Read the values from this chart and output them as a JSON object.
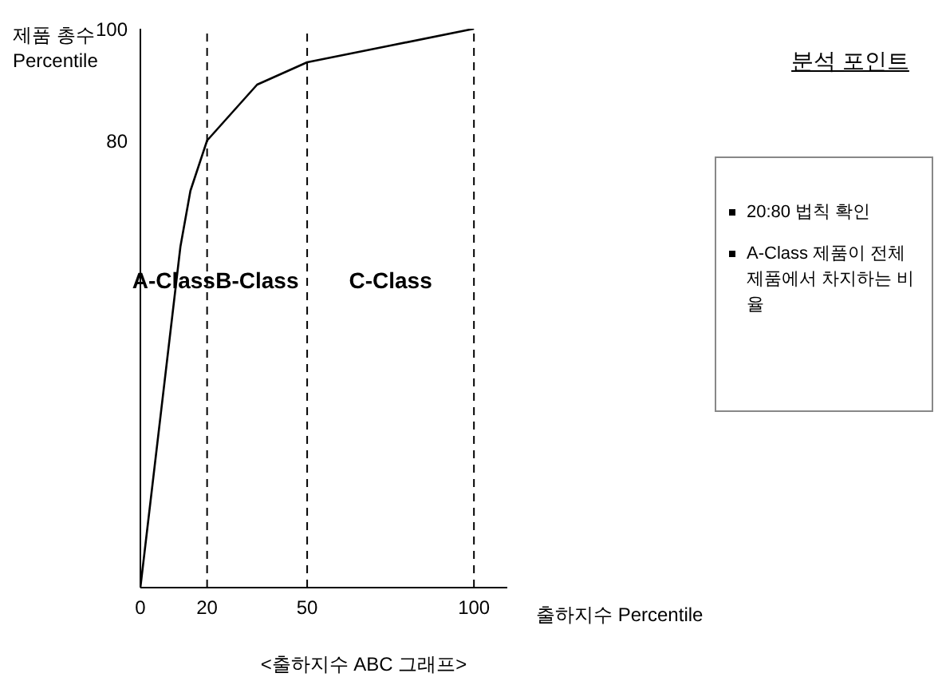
{
  "chart_data": {
    "type": "line",
    "xlabel": "출하지수 Percentile",
    "ylabel": "제품 총수 Percentile",
    "x": [
      0,
      12,
      15,
      20,
      35,
      50,
      75,
      100
    ],
    "series": [
      {
        "color": "#000000",
        "values": [
          0,
          61,
          71,
          80,
          90,
          94,
          97,
          100
        ]
      }
    ],
    "xlim": [
      0,
      110
    ],
    "xticks": [
      0,
      20,
      50,
      100
    ],
    "ylim": [
      0,
      100
    ],
    "yticks": [
      80,
      100
    ],
    "grid": false,
    "legend": false,
    "ref_lines": [
      {
        "axis": "x",
        "value": 20,
        "color": "#000000",
        "line_style": "dashed"
      },
      {
        "axis": "x",
        "value": 50,
        "color": "#000000",
        "line_style": "dashed"
      },
      {
        "axis": "x",
        "value": 100,
        "color": "#000000",
        "line_style": "dashed"
      }
    ],
    "annotations": [
      "A-Class",
      "B-Class",
      "C-Class",
      "분석 포인트",
      "20:80 법칙 확인",
      "A-Class 제품이 전체 제품에서 차지하는 비율",
      "<출하지수 ABC 그래프>"
    ]
  }
}
